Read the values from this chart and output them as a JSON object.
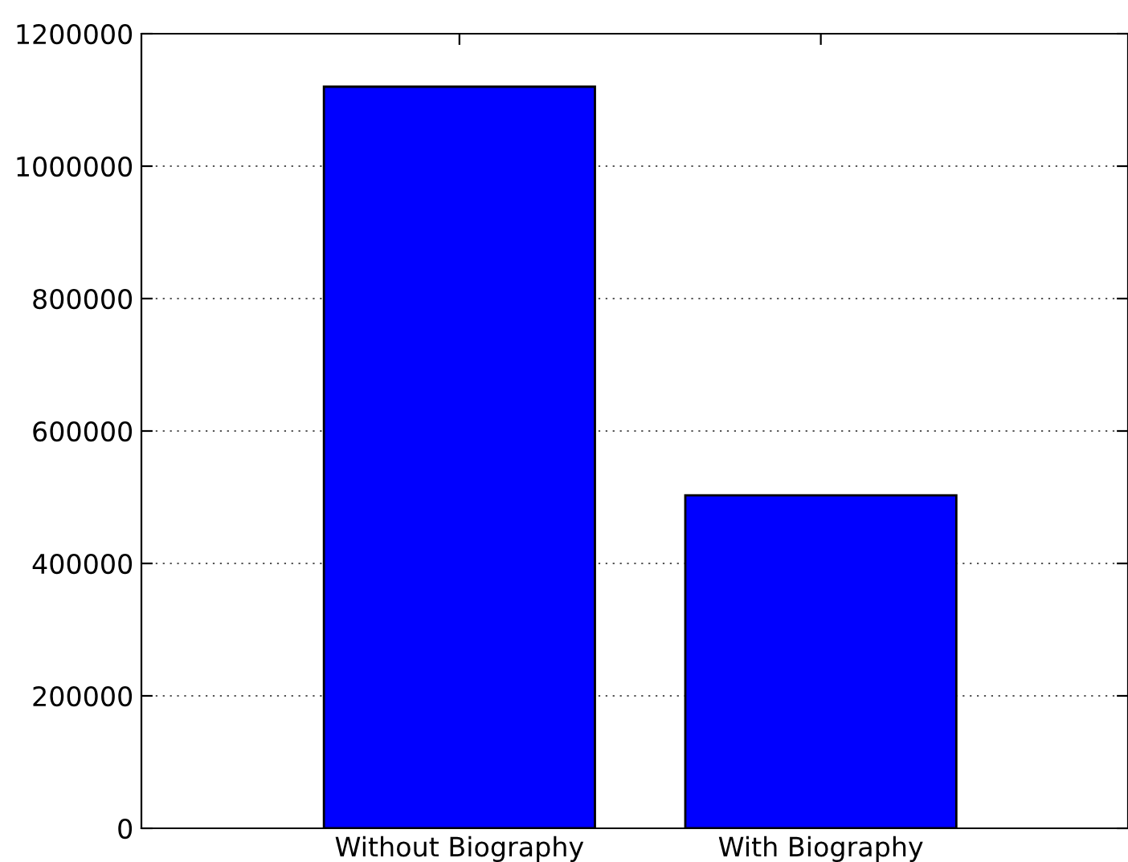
{
  "chart_data": {
    "type": "bar",
    "categories": [
      "Without Biography",
      "With Biography"
    ],
    "values": [
      1120000,
      503000
    ],
    "color": "#0000ff",
    "ylim": [
      0,
      1200000
    ],
    "yticks": [
      0,
      200000,
      400000,
      600000,
      800000,
      1000000,
      1200000
    ],
    "grid": "y"
  }
}
